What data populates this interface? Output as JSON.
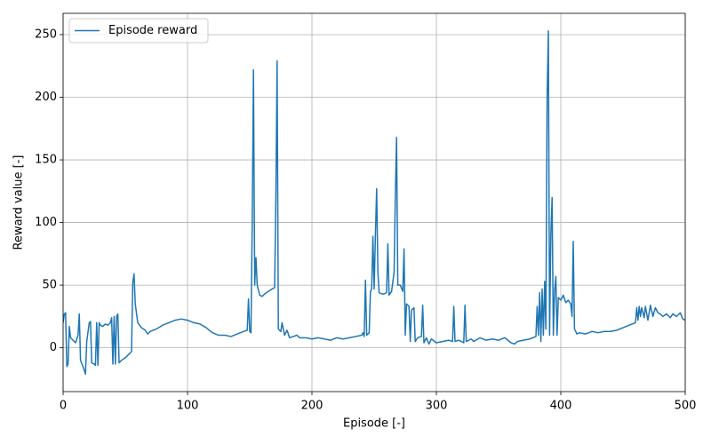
{
  "chart_data": {
    "type": "line",
    "xlabel": "Episode [-]",
    "ylabel": "Reward value [-]",
    "xlim": [
      0,
      500
    ],
    "ylim": [
      -35,
      267
    ],
    "xticks": [
      0,
      100,
      200,
      300,
      400,
      500
    ],
    "yticks": [
      0,
      50,
      100,
      150,
      200,
      250
    ],
    "grid": true,
    "legend": "upper left",
    "x": [
      0,
      1,
      2,
      3,
      4,
      5,
      6,
      8,
      10,
      12,
      13,
      14,
      16,
      18,
      19,
      21,
      22,
      23,
      25,
      26,
      27,
      28,
      29,
      30,
      32,
      34,
      36,
      38,
      39,
      40,
      41,
      42,
      43,
      44,
      45,
      47,
      50,
      53,
      55,
      56,
      57,
      58,
      60,
      63,
      66,
      68,
      70,
      75,
      80,
      85,
      90,
      95,
      100,
      105,
      110,
      115,
      120,
      125,
      130,
      135,
      140,
      145,
      148,
      149,
      150,
      151,
      152,
      153,
      154,
      155,
      156,
      158,
      160,
      162,
      165,
      168,
      170,
      171,
      172,
      173,
      175,
      176,
      178,
      180,
      182,
      185,
      188,
      190,
      195,
      200,
      205,
      210,
      215,
      220,
      225,
      230,
      235,
      240,
      241,
      242,
      243,
      244,
      246,
      247,
      248,
      249,
      250,
      251,
      252,
      253,
      254,
      256,
      258,
      260,
      261,
      262,
      264,
      266,
      267,
      268,
      269,
      271,
      273,
      274,
      275,
      276,
      278,
      279,
      280,
      282,
      283,
      285,
      288,
      289,
      290,
      292,
      294,
      296,
      300,
      305,
      310,
      313,
      314,
      315,
      318,
      322,
      323,
      324,
      328,
      330,
      335,
      340,
      345,
      350,
      355,
      360,
      363,
      365,
      370,
      375,
      380,
      381,
      382,
      383,
      384,
      385,
      386,
      387,
      388,
      389,
      390,
      391,
      392,
      393,
      394,
      395,
      396,
      397,
      398,
      400,
      402,
      404,
      406,
      408,
      409,
      410,
      411,
      413,
      415,
      420,
      425,
      430,
      435,
      440,
      445,
      450,
      455,
      460,
      461,
      462,
      463,
      464,
      465,
      467,
      468,
      470,
      472,
      474,
      476,
      478,
      480,
      482,
      485,
      488,
      490,
      493,
      496,
      498,
      500
    ],
    "series": [
      {
        "name": "Episode reward",
        "color": "#1f77b4",
        "values": [
          20,
          27,
          28,
          -15,
          -13,
          17,
          8,
          6,
          4,
          10,
          27,
          -10,
          -15,
          -21,
          5,
          20,
          21,
          -12,
          -13,
          -14,
          20,
          -14,
          20,
          18,
          17,
          19,
          18,
          20,
          24,
          -13,
          25,
          -13,
          25,
          27,
          -12,
          -10,
          -8,
          -5,
          -3,
          52,
          59,
          35,
          20,
          16,
          14,
          11,
          13,
          15,
          18,
          20,
          22,
          23,
          22,
          20,
          19,
          16,
          12,
          10,
          10,
          9,
          11,
          13,
          14,
          39,
          13,
          12,
          100,
          222,
          50,
          72,
          50,
          42,
          41,
          43,
          45,
          47,
          48,
          120,
          229,
          15,
          13,
          20,
          10,
          14,
          8,
          9,
          10,
          8,
          8,
          7,
          8,
          7,
          6,
          8,
          7,
          8,
          9,
          10,
          12,
          9,
          54,
          10,
          12,
          45,
          47,
          89,
          47,
          90,
          127,
          60,
          44,
          43,
          43,
          44,
          83,
          42,
          45,
          60,
          120,
          168,
          50,
          50,
          45,
          79,
          10,
          35,
          33,
          5,
          30,
          32,
          5,
          8,
          9,
          34,
          4,
          8,
          3,
          7,
          4,
          5,
          6,
          5,
          33,
          5,
          6,
          4,
          34,
          5,
          7,
          5,
          8,
          6,
          7,
          6,
          8,
          4,
          3,
          5,
          6,
          7,
          9,
          33,
          10,
          44,
          5,
          47,
          10,
          53,
          15,
          200,
          253,
          10,
          90,
          120,
          10,
          45,
          57,
          10,
          40,
          38,
          42,
          36,
          38,
          35,
          25,
          85,
          15,
          11,
          12,
          11,
          13,
          12,
          13,
          13,
          14,
          16,
          18,
          20,
          32,
          22,
          33,
          25,
          32,
          24,
          33,
          22,
          34,
          25,
          32,
          28,
          27,
          25,
          27,
          24,
          27,
          25,
          28,
          23,
          22
        ]
      }
    ]
  }
}
